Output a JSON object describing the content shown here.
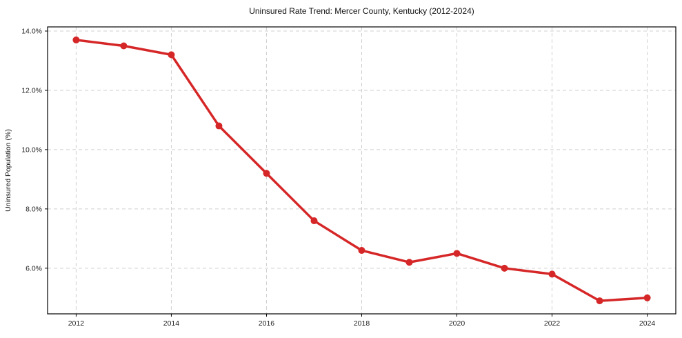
{
  "figure": {
    "background": "#ffffff"
  },
  "chart_data": {
    "type": "line",
    "title": "Uninsured Rate Trend: Mercer County, Kentucky (2012-2024)",
    "xlabel": "",
    "ylabel": "Uninsured Population (%)",
    "x": [
      2012,
      2013,
      2014,
      2015,
      2016,
      2017,
      2018,
      2019,
      2020,
      2021,
      2022,
      2023,
      2024
    ],
    "series": [
      {
        "name": "Uninsured Rate",
        "color": "#d62728",
        "values": [
          13.7,
          13.5,
          13.2,
          10.8,
          9.2,
          7.6,
          6.6,
          6.2,
          6.5,
          6.0,
          5.8,
          4.9,
          5.0
        ]
      }
    ],
    "xlim": [
      2011.4,
      2024.6
    ],
    "ylim": [
      4.46,
      14.14
    ],
    "x_ticks": {
      "values": [
        2012,
        2014,
        2016,
        2018,
        2020,
        2022,
        2024
      ],
      "labels": [
        "2012",
        "2014",
        "2016",
        "2018",
        "2020",
        "2022",
        "2024"
      ]
    },
    "y_ticks": {
      "values": [
        6,
        8,
        10,
        12,
        14
      ],
      "labels": [
        "6.0%",
        "8.0%",
        "10.0%",
        "12.0%",
        "14.0%"
      ]
    },
    "grid": true,
    "legend_position": "none",
    "style": {
      "grid_color": "#cfcfcf",
      "spine_color": "#000000",
      "text_color": "#1a1a1a",
      "marker": "circle",
      "marker_size": 5,
      "line_width": 3.5
    }
  }
}
